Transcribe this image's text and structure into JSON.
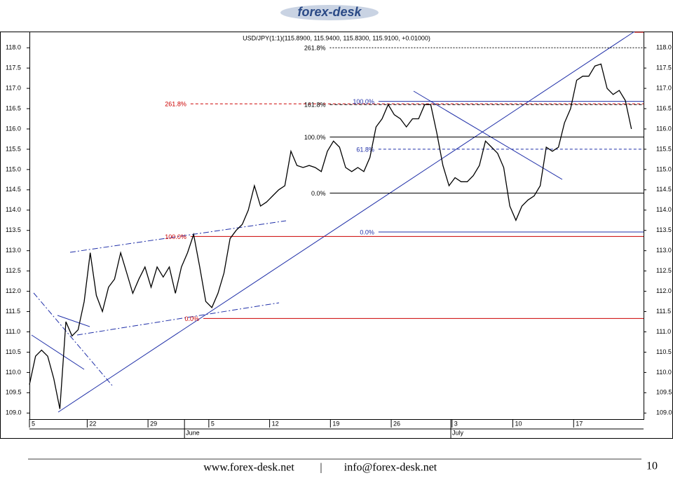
{
  "header": {
    "logo": "forex-desk"
  },
  "chart_data": {
    "type": "line",
    "title": "USD/JPY(1:1)(115.8900, 115.9400, 115.8300, 115.9100, +0.01000)",
    "xlim": [
      0,
      101
    ],
    "xticks": [
      {
        "value": 0,
        "label": "5"
      },
      {
        "value": 9.5,
        "label": "22"
      },
      {
        "value": 19.5,
        "label": "29"
      },
      {
        "value": 29.5,
        "label": "5"
      },
      {
        "value": 39.5,
        "label": "12"
      },
      {
        "value": 49.5,
        "label": "19"
      },
      {
        "value": 59.5,
        "label": "26"
      },
      {
        "value": 69.5,
        "label": "3"
      },
      {
        "value": 79.5,
        "label": "10"
      },
      {
        "value": 89.5,
        "label": "17"
      }
    ],
    "month_labels": [
      {
        "value": 25.5,
        "label": "June"
      },
      {
        "value": 69.3,
        "label": "July"
      }
    ],
    "ylim": [
      108.85,
      118.4
    ],
    "yticks": [
      {
        "value": 109,
        "label": "109.0"
      },
      109.5,
      {
        "value": 110,
        "label": "110.0"
      },
      110.5,
      {
        "value": 111,
        "label": "111.0"
      },
      111.5,
      {
        "value": 112,
        "label": "112.0"
      },
      112.5,
      {
        "value": 113,
        "label": "113.0"
      },
      113.5,
      {
        "value": 114,
        "label": "114.0"
      },
      114.5,
      {
        "value": 115,
        "label": "115.0"
      },
      115.5,
      {
        "value": 116,
        "label": "116.0"
      },
      116.5,
      {
        "value": 117,
        "label": "117.0"
      },
      117.5,
      {
        "value": 118,
        "label": "118.0"
      }
    ],
    "series": [
      {
        "name": "USD/JPY",
        "color": "#000000",
        "values": [
          109.7,
          110.4,
          110.55,
          110.4,
          109.85,
          109.1,
          111.25,
          110.9,
          111.05,
          111.75,
          112.95,
          111.9,
          111.5,
          112.1,
          112.3,
          112.95,
          112.45,
          111.95,
          112.3,
          112.6,
          112.1,
          112.6,
          112.35,
          112.6,
          111.95,
          112.6,
          112.95,
          113.4,
          112.6,
          111.75,
          111.6,
          111.95,
          112.45,
          113.3,
          113.5,
          113.65,
          114.0,
          114.6,
          114.1,
          114.2,
          114.35,
          114.5,
          114.6,
          115.45,
          115.1,
          115.05,
          115.1,
          115.05,
          114.95,
          115.45,
          115.7,
          115.55,
          115.05,
          114.95,
          115.05,
          114.95,
          115.3,
          116.05,
          116.25,
          116.6,
          116.35,
          116.25,
          116.05,
          116.25,
          116.25,
          116.6,
          116.6,
          115.9,
          115.1,
          114.6,
          114.8,
          114.7,
          114.7,
          114.85,
          115.1,
          115.7,
          115.55,
          115.4,
          115.05,
          114.1,
          113.75,
          114.1,
          114.25,
          114.35,
          114.6,
          115.55,
          115.45,
          115.55,
          116.15,
          116.5,
          117.2,
          117.3,
          117.3,
          117.55,
          117.6,
          117.0,
          116.85,
          116.95,
          116.7,
          116.0
        ]
      }
    ],
    "levels": [
      {
        "label": "261.8%",
        "value": 116.62,
        "color": "#cc0000",
        "style": "dashed",
        "from": 26.5
      },
      {
        "label": "100.0%",
        "value": 113.35,
        "color": "#cc0000",
        "style": "solid",
        "from": 26.5
      },
      {
        "label": "0.0%",
        "value": 111.33,
        "color": "#cc0000",
        "style": "solid",
        "from": 28.6
      },
      {
        "label": "261.8%",
        "value": 118.0,
        "color": "#000000",
        "style": "dotted",
        "from": 49.4
      },
      {
        "label": "161.8%",
        "value": 116.6,
        "color": "#000000",
        "style": "dashed",
        "from": 49.4
      },
      {
        "label": "100.0%",
        "value": 115.8,
        "color": "#000000",
        "style": "solid",
        "from": 49.4
      },
      {
        "label": "0.0%",
        "value": 114.42,
        "color": "#000000",
        "style": "solid",
        "from": 49.4
      },
      {
        "label": "100.0%",
        "value": 116.68,
        "color": "#1f2fa8",
        "style": "solid",
        "from": 57.4
      },
      {
        "label": "61.8%",
        "value": 115.5,
        "color": "#1f2fa8",
        "style": "dashed",
        "from": 57.4
      },
      {
        "label": "0.0%",
        "value": 113.46,
        "color": "#1f2fa8",
        "style": "solid",
        "from": 57.4
      }
    ]
  },
  "footer": {
    "website": "www.forex-desk.net",
    "separator": "|",
    "email": "info@forex-desk.net",
    "page": "10"
  }
}
